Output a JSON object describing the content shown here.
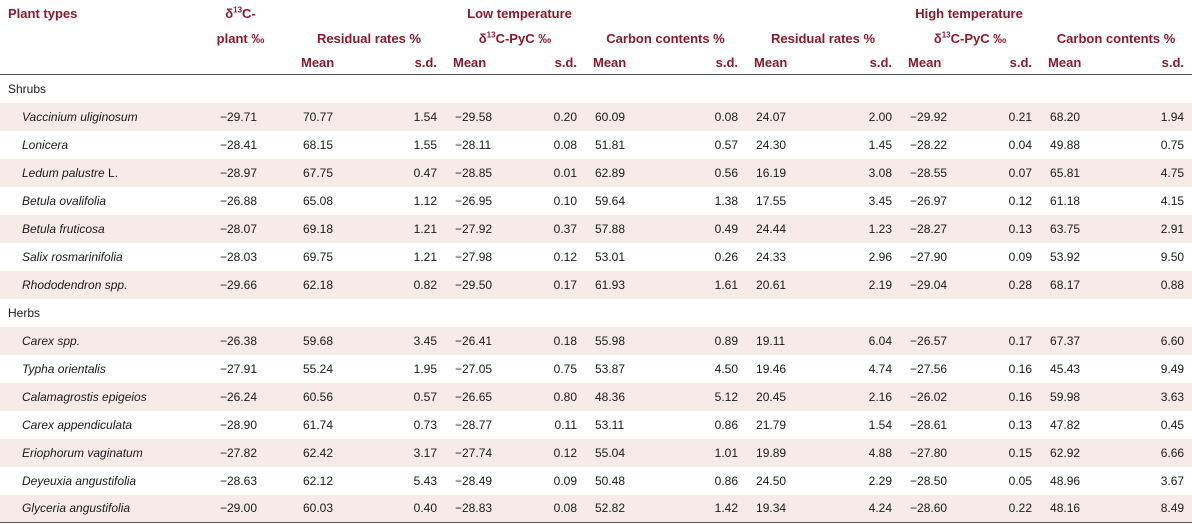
{
  "header": {
    "plant_types": "Plant types",
    "delta_prefix": "δ",
    "delta_sup": "13",
    "delta_plant_suffix": "C-",
    "delta_plant_line2": "plant ‰",
    "low_temperature": "Low temperature",
    "high_temperature": "High temperature",
    "residual_rates": "Residual rates %",
    "pyc_suffix": "C-PyC ‰",
    "carbon_contents": "Carbon contents %",
    "mean": "Mean",
    "sd": "s.d."
  },
  "groups": [
    {
      "label": "Shrubs",
      "rows": [
        {
          "name": "Vaccinium uliginosum",
          "d13c": "−29.71",
          "vals": [
            "70.77",
            "1.54",
            "−29.58",
            "0.20",
            "60.09",
            "0.08",
            "24.07",
            "2.00",
            "−29.92",
            "0.21",
            "68.20",
            "1.94"
          ]
        },
        {
          "name": "Lonicera",
          "d13c": "−28.41",
          "vals": [
            "68.15",
            "1.55",
            "−28.11",
            "0.08",
            "51.81",
            "0.57",
            "24.30",
            "1.45",
            "−28.22",
            "0.04",
            "49.88",
            "0.75"
          ]
        },
        {
          "name": "Ledum palustre",
          "name_suffix": " L.",
          "d13c": "−28.97",
          "vals": [
            "67.75",
            "0.47",
            "−28.85",
            "0.01",
            "62.89",
            "0.56",
            "16.19",
            "3.08",
            "−28.55",
            "0.07",
            "65.81",
            "4.75"
          ]
        },
        {
          "name": "Betula ovalifolia",
          "d13c": "−26.88",
          "vals": [
            "65.08",
            "1.12",
            "−26.95",
            "0.10",
            "59.64",
            "1.38",
            "17.55",
            "3.45",
            "−26.97",
            "0.12",
            "61.18",
            "4.15"
          ]
        },
        {
          "name": "Betula fruticosa",
          "d13c": "−28.07",
          "vals": [
            "69.18",
            "1.21",
            "−27.92",
            "0.37",
            "57.88",
            "0.49",
            "24.44",
            "1.23",
            "−28.27",
            "0.13",
            "63.75",
            "2.91"
          ]
        },
        {
          "name": "Salix rosmarinifolia",
          "d13c": "−28.03",
          "vals": [
            "69.75",
            "1.21",
            "−27.98",
            "0.12",
            "53.01",
            "0.26",
            "24.33",
            "2.96",
            "−27.90",
            "0.09",
            "53.92",
            "9.50"
          ]
        },
        {
          "name": "Rhododendron spp.",
          "d13c": "−29.66",
          "vals": [
            "62.18",
            "0.82",
            "−29.50",
            "0.17",
            "61.93",
            "1.61",
            "20.61",
            "2.19",
            "−29.04",
            "0.28",
            "68.17",
            "0.88"
          ]
        }
      ]
    },
    {
      "label": "Herbs",
      "rows": [
        {
          "name": "Carex spp.",
          "d13c": "−26.38",
          "vals": [
            "59.68",
            "3.45",
            "−26.41",
            "0.18",
            "55.98",
            "0.89",
            "19.11",
            "6.04",
            "−26.57",
            "0.17",
            "67.37",
            "6.60"
          ]
        },
        {
          "name": "Typha orientalis",
          "d13c": "−27.91",
          "vals": [
            "55.24",
            "1.95",
            "−27.05",
            "0.75",
            "53.87",
            "4.50",
            "19.46",
            "4.74",
            "−27.56",
            "0.16",
            "45.43",
            "9.49"
          ]
        },
        {
          "name": "Calamagrostis epigeios",
          "d13c": "−26.24",
          "vals": [
            "60.56",
            "0.57",
            "−26.65",
            "0.80",
            "48.36",
            "5.12",
            "20.45",
            "2.16",
            "−26.02",
            "0.16",
            "59.98",
            "3.63"
          ]
        },
        {
          "name": "Carex appendiculata",
          "d13c": "−28.90",
          "vals": [
            "61.74",
            "0.73",
            "−28.77",
            "0.11",
            "53.11",
            "0.86",
            "21.79",
            "1.54",
            "−28.61",
            "0.13",
            "47.82",
            "0.45"
          ]
        },
        {
          "name": "Eriophorum vaginatum",
          "d13c": "−27.82",
          "vals": [
            "62.42",
            "3.17",
            "−27.74",
            "0.12",
            "55.04",
            "1.01",
            "19.89",
            "4.88",
            "−27.80",
            "0.15",
            "62.92",
            "6.66"
          ]
        },
        {
          "name": "Deyeuxia angustifolia",
          "d13c": "−28.63",
          "vals": [
            "62.12",
            "5.43",
            "−28.49",
            "0.09",
            "50.48",
            "0.86",
            "24.50",
            "2.29",
            "−28.50",
            "0.05",
            "48.96",
            "3.67"
          ]
        },
        {
          "name": "Glyceria angustifolia",
          "d13c": "−29.00",
          "vals": [
            "60.03",
            "0.40",
            "−28.83",
            "0.08",
            "52.82",
            "1.42",
            "19.34",
            "4.24",
            "−28.60",
            "0.22",
            "48.16",
            "8.49"
          ]
        }
      ]
    }
  ]
}
